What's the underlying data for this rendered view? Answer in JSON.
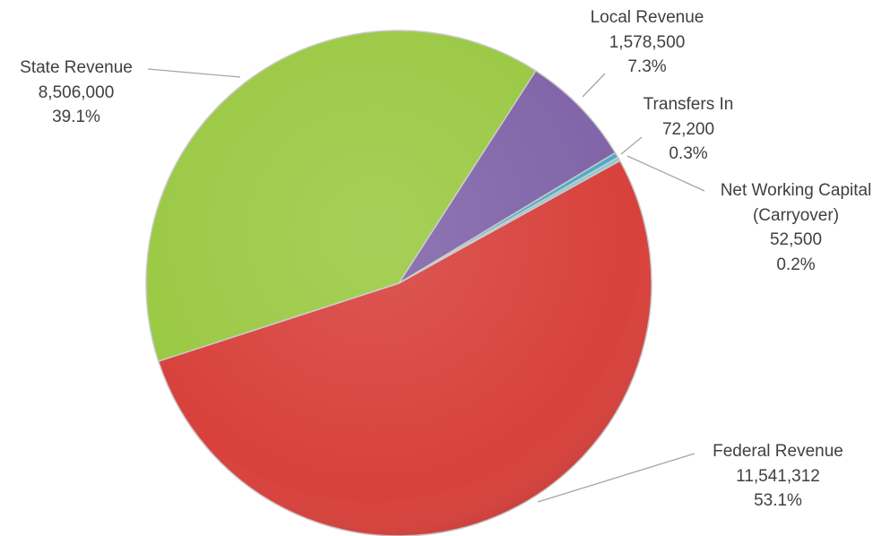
{
  "chart_data": {
    "type": "pie",
    "categories": [
      "Federal Revenue",
      "State Revenue",
      "Local Revenue",
      "Transfers In",
      "Net Working Capital (Carryover)"
    ],
    "values": [
      11541312,
      8506000,
      1578500,
      72200,
      52500
    ],
    "value_labels": [
      "11,541,312",
      "8,506,000",
      "1,578,500",
      "72,200",
      "52,500"
    ],
    "percent_labels": [
      "53.1%",
      "39.1%",
      "7.3%",
      "0.3%",
      "0.2%"
    ],
    "colors": [
      "#d8413c",
      "#9ac943",
      "#8064a8",
      "#4aabc5",
      "#8cc9d6"
    ]
  }
}
